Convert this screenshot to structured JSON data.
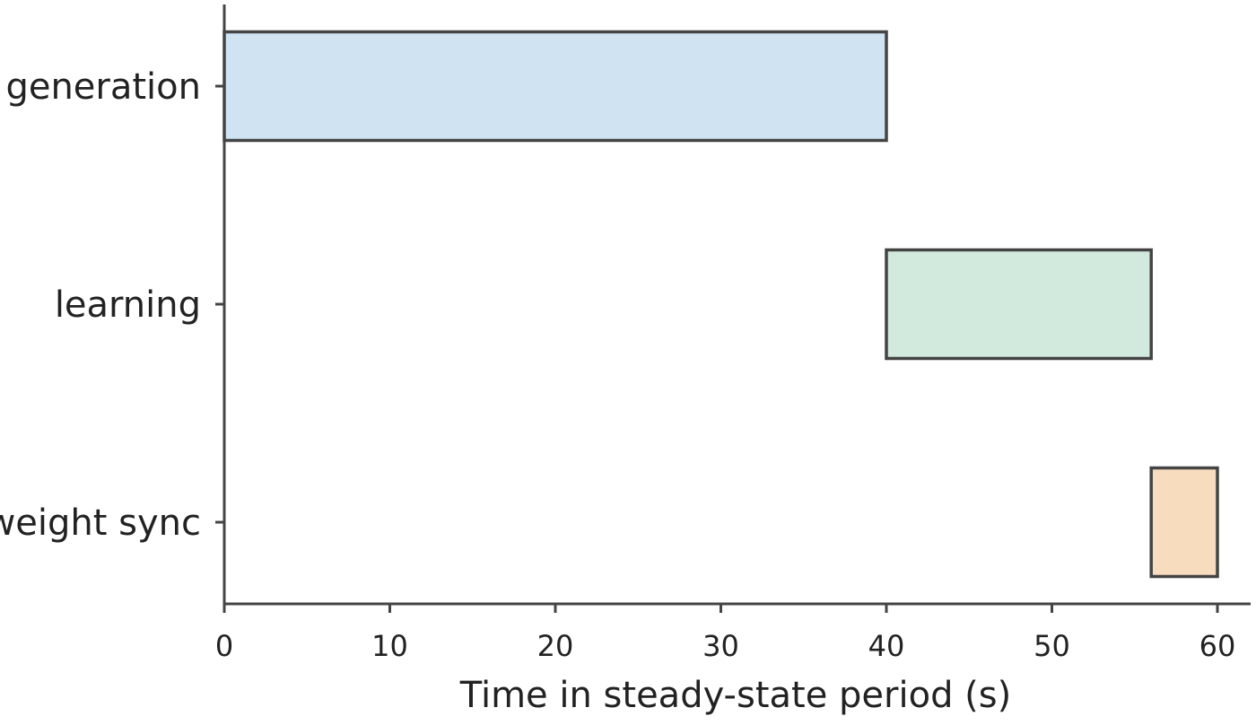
{
  "chart_data": {
    "type": "bar",
    "orientation": "horizontal",
    "style": "gantt",
    "categories": [
      "generation",
      "learning",
      "weight sync"
    ],
    "bars": [
      {
        "label": "generation",
        "start": 0,
        "end": 40,
        "color": "#cfe3f3"
      },
      {
        "label": "learning",
        "start": 40,
        "end": 56,
        "color": "#d2e9dd"
      },
      {
        "label": "weight sync",
        "start": 56,
        "end": 60,
        "color": "#f7ddbe"
      }
    ],
    "xlabel": "Time in steady-state period (s)",
    "ylabel": "",
    "title": "",
    "xlim": [
      0,
      60
    ],
    "xticks": [
      0,
      10,
      20,
      30,
      40,
      50,
      60
    ],
    "grid": false,
    "legend": "none"
  }
}
